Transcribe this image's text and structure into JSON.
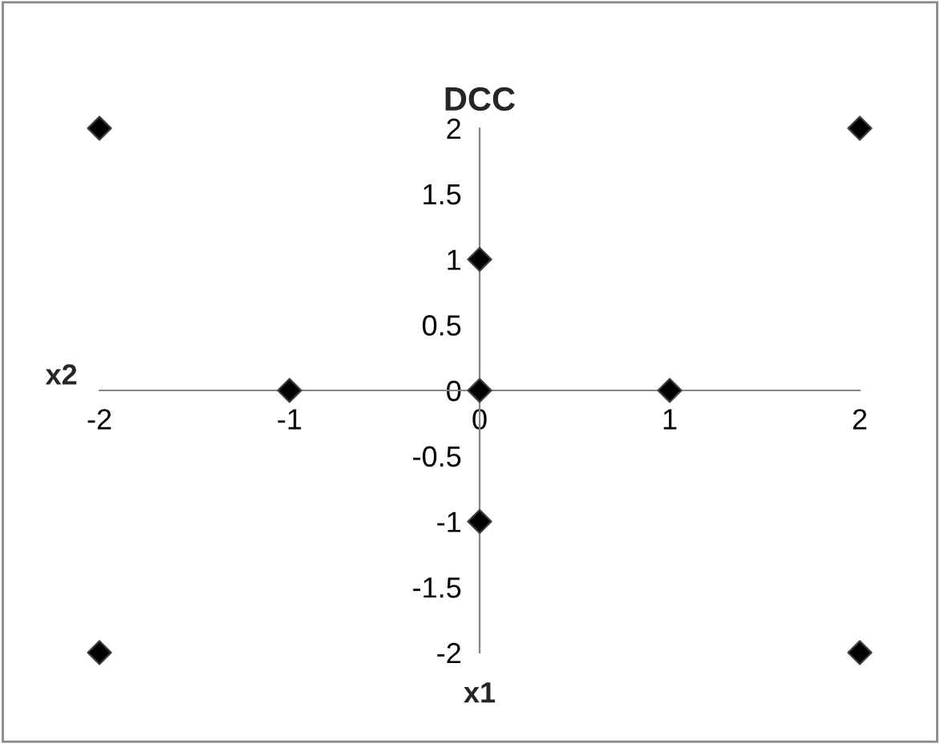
{
  "chart_data": {
    "type": "scatter",
    "title": "DCC",
    "xlabel": "x1",
    "ylabel": "x2",
    "x": [
      -2,
      2,
      -2,
      2,
      0,
      0,
      -1,
      1,
      0
    ],
    "series": [
      {
        "color": "#000000",
        "values": [
          2,
          2,
          -2,
          -2,
          1,
          -1,
          0,
          0,
          0
        ]
      }
    ],
    "xlim": [
      -2,
      2
    ],
    "xticks": [
      -2,
      -1,
      0,
      1,
      2
    ],
    "ylim": [
      -2,
      2
    ],
    "yticks": [
      -2,
      -1.5,
      -1,
      -0.5,
      0,
      0.5,
      1,
      1.5,
      2
    ],
    "marker": "diamond",
    "grid": false,
    "legend": false
  }
}
